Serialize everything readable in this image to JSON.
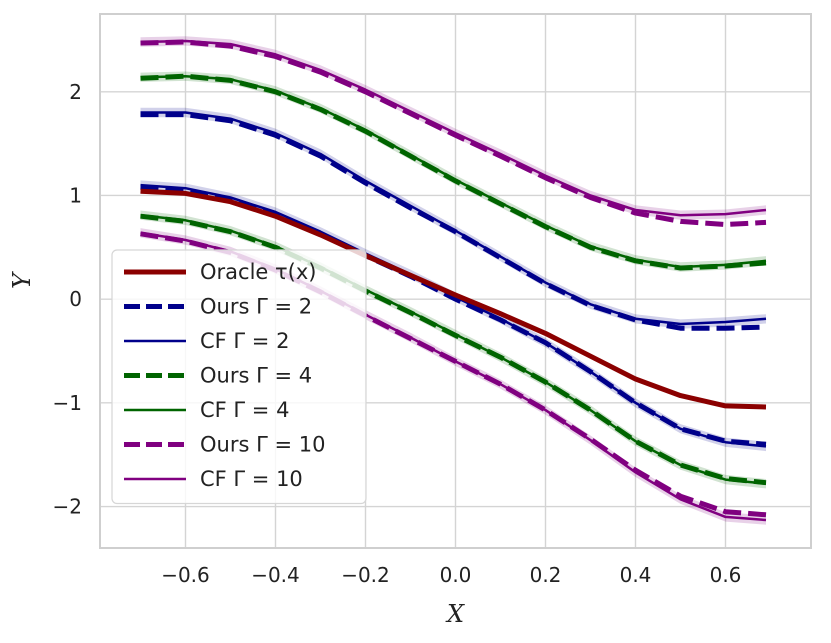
{
  "chart_data": {
    "type": "line",
    "title": "",
    "xlabel": "X",
    "ylabel": "Y",
    "xlim": [
      -0.79,
      0.79
    ],
    "ylim": [
      -2.4,
      2.75
    ],
    "xticks": [
      -0.6,
      -0.4,
      -0.2,
      0.0,
      0.2,
      0.4,
      0.6
    ],
    "xtick_labels": [
      "−0.6",
      "−0.4",
      "−0.2",
      "0.0",
      "0.2",
      "0.4",
      "0.6"
    ],
    "yticks": [
      -2,
      -1,
      0,
      1,
      2
    ],
    "ytick_labels": [
      "−2",
      "−1",
      "0",
      "1",
      "2"
    ],
    "grid": true,
    "legend_position": "lower-left",
    "x": [
      -0.7,
      -0.6,
      -0.5,
      -0.4,
      -0.3,
      -0.2,
      -0.1,
      0.0,
      0.1,
      0.2,
      0.3,
      0.4,
      0.5,
      0.6,
      0.69
    ],
    "series": [
      {
        "name": "Oracle τ(x)",
        "legend": "Oracle τ(x)",
        "color": "#8b0000",
        "style": "solid",
        "width": 5,
        "values": [
          1.04,
          1.02,
          0.94,
          0.8,
          0.62,
          0.42,
          0.23,
          0.04,
          -0.14,
          -0.33,
          -0.55,
          -0.77,
          -0.93,
          -1.03,
          -1.04
        ]
      },
      {
        "name": "Ours Γ=2",
        "legend": "Ours Γ = 2",
        "color": "#00008b",
        "style": "dashed",
        "width": 5,
        "values": [
          1.08,
          1.05,
          0.96,
          0.82,
          0.63,
          0.42,
          0.22,
          0.0,
          -0.2,
          -0.42,
          -0.7,
          -1.0,
          -1.25,
          -1.37,
          -1.4
        ]
      },
      {
        "name": "CF Γ=2",
        "legend": "CF Γ = 2",
        "color": "#00008b",
        "style": "solid",
        "width": 2.5,
        "values": [
          1.1,
          1.07,
          0.98,
          0.84,
          0.65,
          0.44,
          0.24,
          0.02,
          -0.19,
          -0.42,
          -0.7,
          -1.0,
          -1.25,
          -1.38,
          -1.42
        ]
      },
      {
        "name": "Ours Γ=4",
        "legend": "Ours Γ = 4",
        "color": "#006400",
        "style": "dashed",
        "width": 5,
        "values": [
          0.8,
          0.75,
          0.65,
          0.5,
          0.3,
          0.08,
          -0.13,
          -0.35,
          -0.56,
          -0.8,
          -1.07,
          -1.37,
          -1.6,
          -1.73,
          -1.77
        ]
      },
      {
        "name": "CF Γ=4",
        "legend": "CF Γ = 4",
        "color": "#006400",
        "style": "solid",
        "width": 2.5,
        "values": [
          0.81,
          0.76,
          0.66,
          0.51,
          0.31,
          0.09,
          -0.12,
          -0.34,
          -0.56,
          -0.8,
          -1.07,
          -1.37,
          -1.6,
          -1.74,
          -1.78
        ]
      },
      {
        "name": "Ours Γ=10",
        "legend": "Ours Γ = 10",
        "color": "#800080",
        "style": "dashed",
        "width": 5,
        "values": [
          0.63,
          0.56,
          0.45,
          0.28,
          0.07,
          -0.16,
          -0.38,
          -0.6,
          -0.82,
          -1.07,
          -1.35,
          -1.65,
          -1.9,
          -2.05,
          -2.08
        ]
      },
      {
        "name": "CF Γ=10",
        "legend": "CF Γ = 10",
        "color": "#800080",
        "style": "solid",
        "width": 2.5,
        "values": [
          0.64,
          0.57,
          0.46,
          0.29,
          0.08,
          -0.15,
          -0.37,
          -0.6,
          -0.82,
          -1.07,
          -1.36,
          -1.67,
          -1.93,
          -2.1,
          -2.13
        ]
      },
      {
        "name": "Ours Γ=2 (upper)",
        "color": "#00008b",
        "style": "dashed",
        "width": 5,
        "in_legend": false,
        "values": [
          1.78,
          1.78,
          1.72,
          1.58,
          1.38,
          1.12,
          0.88,
          0.65,
          0.4,
          0.15,
          -0.06,
          -0.2,
          -0.28,
          -0.28,
          -0.27
        ]
      },
      {
        "name": "CF Γ=2 (upper)",
        "color": "#00008b",
        "style": "solid",
        "width": 2.5,
        "in_legend": false,
        "values": [
          1.8,
          1.8,
          1.74,
          1.6,
          1.4,
          1.14,
          0.9,
          0.66,
          0.41,
          0.16,
          -0.05,
          -0.19,
          -0.24,
          -0.22,
          -0.19
        ]
      },
      {
        "name": "Ours Γ=4 (upper)",
        "color": "#006400",
        "style": "dashed",
        "width": 5,
        "in_legend": false,
        "values": [
          2.13,
          2.15,
          2.11,
          2.0,
          1.83,
          1.62,
          1.38,
          1.14,
          0.92,
          0.7,
          0.5,
          0.37,
          0.3,
          0.32,
          0.35
        ]
      },
      {
        "name": "CF Γ=4 (upper)",
        "color": "#006400",
        "style": "solid",
        "width": 2.5,
        "in_legend": false,
        "values": [
          2.14,
          2.15,
          2.12,
          2.01,
          1.84,
          1.63,
          1.39,
          1.15,
          0.93,
          0.71,
          0.51,
          0.38,
          0.31,
          0.33,
          0.37
        ]
      },
      {
        "name": "Ours Γ=10 (upper)",
        "color": "#800080",
        "style": "dashed",
        "width": 5,
        "in_legend": false,
        "values": [
          2.47,
          2.48,
          2.44,
          2.34,
          2.19,
          2.0,
          1.79,
          1.58,
          1.38,
          1.17,
          0.98,
          0.83,
          0.75,
          0.72,
          0.74
        ]
      },
      {
        "name": "CF Γ=10 (upper)",
        "color": "#800080",
        "style": "solid",
        "width": 2.5,
        "in_legend": false,
        "values": [
          2.48,
          2.49,
          2.46,
          2.36,
          2.21,
          2.02,
          1.81,
          1.6,
          1.4,
          1.19,
          1.0,
          0.86,
          0.81,
          0.82,
          0.86
        ]
      }
    ]
  }
}
